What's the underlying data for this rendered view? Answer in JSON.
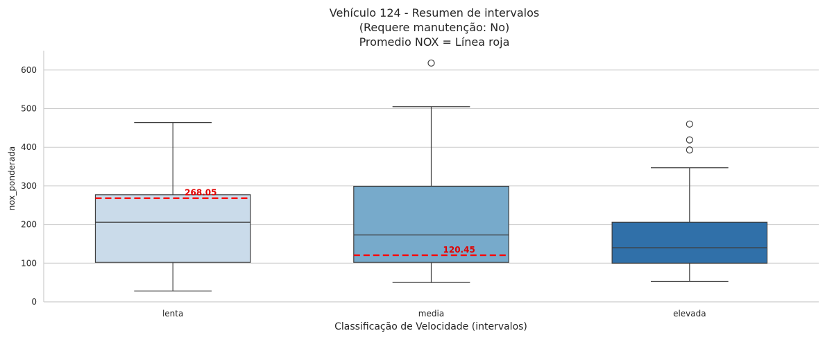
{
  "chart_data": {
    "type": "box",
    "title_lines": [
      "Vehículo 124 - Resumen de intervalos",
      "(Requere manutenção: No)",
      "Promedio NOX = Línea roja"
    ],
    "xlabel": "Classificação de Velocidade (intervalos)",
    "ylabel": "nox_ponderada",
    "ylim": [
      0,
      650
    ],
    "yticks": [
      0,
      100,
      200,
      300,
      400,
      500,
      600
    ],
    "ytick_labels": [
      "0",
      "100",
      "200",
      "300",
      "400",
      "500",
      "600"
    ],
    "grid": true,
    "categories": [
      "lenta",
      "media",
      "elevada"
    ],
    "boxes": [
      {
        "category": "lenta",
        "whisker_low": 28,
        "q1": 102,
        "median": 206,
        "q3": 277,
        "whisker_high": 464,
        "outliers": [],
        "color": "#cadbea"
      },
      {
        "category": "media",
        "whisker_low": 50,
        "q1": 102,
        "median": 173,
        "q3": 299,
        "whisker_high": 505,
        "outliers": [
          618
        ],
        "color": "#77aacb"
      },
      {
        "category": "elevada",
        "whisker_low": 53,
        "q1": 100,
        "median": 140,
        "q3": 206,
        "whisker_high": 347,
        "outliers": [
          393,
          419,
          460
        ],
        "color": "#3070a9"
      }
    ],
    "mean_lines": [
      {
        "category": "lenta",
        "value": 268.05,
        "label": "268.05"
      },
      {
        "category": "media",
        "value": 120.45,
        "label": "120.45"
      }
    ],
    "mean_line_color": "#ff0000",
    "mean_label_color": "#e00000",
    "box_edge_color": "#3d3d3d",
    "grid_color": "#cccccc"
  }
}
